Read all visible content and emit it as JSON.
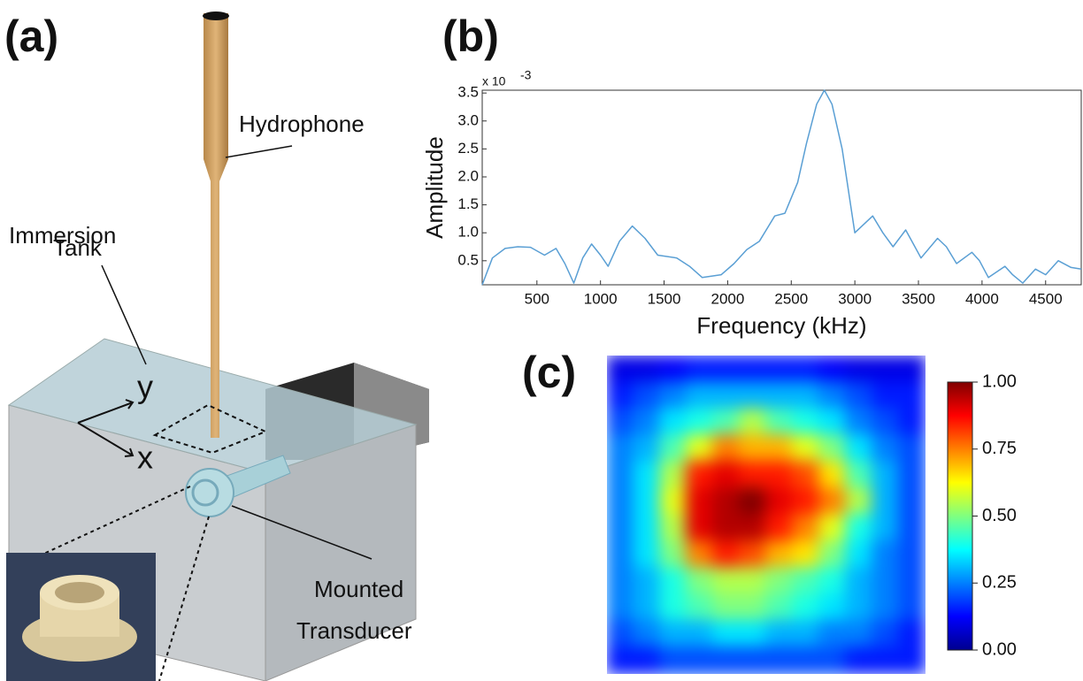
{
  "panels": [
    "(a)",
    "(b)",
    "(c)"
  ],
  "diagram": {
    "labels": {
      "hydrophone": "Hydrophone",
      "immersion": "Immersion",
      "tank": "Tank",
      "y": "y",
      "x": "x",
      "mounted": "Mounted",
      "transducer": "Transducer"
    }
  },
  "chart_data": [
    {
      "type": "line",
      "xlabel": "Frequency (kHz)",
      "ylabel": "Amplitude",
      "y_multiplier": "x 10",
      "y_exponent": "-3",
      "color": "#5a9fd4",
      "x": [
        70,
        150,
        250,
        350,
        450,
        560,
        650,
        720,
        790,
        860,
        930,
        1000,
        1060,
        1150,
        1250,
        1350,
        1450,
        1600,
        1700,
        1800,
        1950,
        2050,
        2150,
        2250,
        2370,
        2450,
        2550,
        2620,
        2700,
        2760,
        2820,
        2900,
        3000,
        3070,
        3140,
        3220,
        3300,
        3400,
        3460,
        3520,
        3650,
        3720,
        3800,
        3920,
        3980,
        4050,
        4180,
        4240,
        4320,
        4420,
        4500,
        4600,
        4700,
        4780
      ],
      "values": [
        0.07,
        0.55,
        0.72,
        0.75,
        0.74,
        0.6,
        0.72,
        0.45,
        0.1,
        0.55,
        0.8,
        0.6,
        0.4,
        0.85,
        1.12,
        0.9,
        0.6,
        0.55,
        0.4,
        0.2,
        0.25,
        0.45,
        0.7,
        0.85,
        1.3,
        1.35,
        1.9,
        2.6,
        3.3,
        3.55,
        3.3,
        2.5,
        1.0,
        1.15,
        1.3,
        1.0,
        0.75,
        1.05,
        0.8,
        0.55,
        0.9,
        0.75,
        0.45,
        0.65,
        0.5,
        0.2,
        0.4,
        0.25,
        0.1,
        0.35,
        0.25,
        0.5,
        0.38,
        0.35
      ],
      "xlim": [
        70,
        4780
      ],
      "ylim": [
        0.07,
        3.55
      ],
      "xticks": [
        500,
        1000,
        1500,
        2000,
        2500,
        3000,
        3500,
        4000,
        4500
      ],
      "yticks": [
        0.5,
        {
          "value": 1,
          "label": "1.0"
        },
        1.5,
        {
          "value": 2,
          "label": "2.0"
        },
        2.5,
        {
          "value": 3,
          "label": "3.0"
        },
        3.5
      ]
    },
    {
      "type": "heatmap",
      "colormap": "jet",
      "clim": [
        0,
        1
      ],
      "cticks": [
        {
          "value": 0,
          "label": "0.00"
        },
        0.25,
        {
          "value": 0.5,
          "label": "0.50"
        },
        0.75,
        {
          "value": 1,
          "label": "1.00"
        }
      ],
      "values": [
        [
          0.1,
          0.1,
          0.12,
          0.15,
          0.15,
          0.15,
          0.15,
          0.15,
          0.12,
          0.1,
          0.1,
          0.1
        ],
        [
          0.15,
          0.2,
          0.25,
          0.3,
          0.3,
          0.3,
          0.3,
          0.3,
          0.25,
          0.2,
          0.15,
          0.15
        ],
        [
          0.2,
          0.25,
          0.35,
          0.4,
          0.45,
          0.55,
          0.45,
          0.4,
          0.35,
          0.25,
          0.2,
          0.15
        ],
        [
          0.25,
          0.3,
          0.45,
          0.6,
          0.75,
          0.7,
          0.7,
          0.6,
          0.5,
          0.35,
          0.25,
          0.2
        ],
        [
          0.25,
          0.35,
          0.55,
          0.85,
          0.9,
          0.85,
          0.85,
          0.8,
          0.65,
          0.45,
          0.3,
          0.2
        ],
        [
          0.25,
          0.35,
          0.6,
          0.9,
          0.95,
          1.0,
          0.9,
          0.85,
          0.75,
          0.55,
          0.3,
          0.2
        ],
        [
          0.25,
          0.35,
          0.55,
          0.9,
          0.95,
          0.95,
          0.85,
          0.75,
          0.6,
          0.4,
          0.3,
          0.2
        ],
        [
          0.25,
          0.35,
          0.5,
          0.75,
          0.85,
          0.8,
          0.7,
          0.65,
          0.5,
          0.35,
          0.25,
          0.2
        ],
        [
          0.25,
          0.3,
          0.4,
          0.5,
          0.55,
          0.55,
          0.5,
          0.45,
          0.4,
          0.3,
          0.25,
          0.2
        ],
        [
          0.25,
          0.3,
          0.4,
          0.45,
          0.5,
          0.5,
          0.45,
          0.4,
          0.35,
          0.3,
          0.25,
          0.2
        ],
        [
          0.2,
          0.25,
          0.3,
          0.3,
          0.35,
          0.35,
          0.3,
          0.3,
          0.25,
          0.25,
          0.2,
          0.15
        ],
        [
          0.15,
          0.15,
          0.2,
          0.2,
          0.2,
          0.2,
          0.2,
          0.2,
          0.2,
          0.15,
          0.15,
          0.15
        ]
      ]
    }
  ]
}
